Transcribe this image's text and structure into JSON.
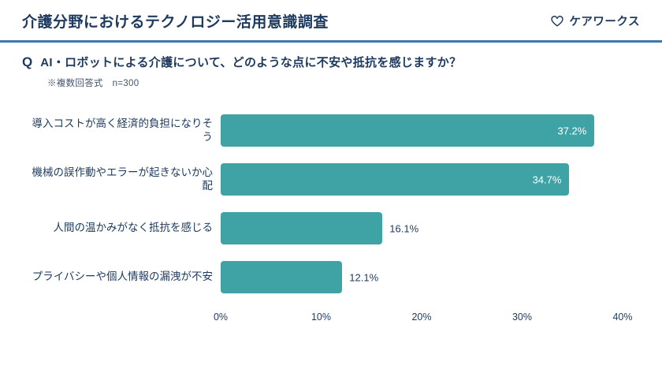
{
  "header": {
    "title": "介護分野におけるテクノロジー活用意識調査",
    "brand": "ケアワークス"
  },
  "question": {
    "prefix": "Q",
    "text": "AI・ロボットによる介護について、どのような点に不安や抵抗を感じますか？",
    "note": "※複数回答式　n=300"
  },
  "chart_data": {
    "type": "bar",
    "orientation": "horizontal",
    "title": "AI・ロボットによる介護について、どのような点に不安や抵抗を感じますか？",
    "categories": [
      "導入コストが高く経済的負担になりそう",
      "機械の誤作動やエラーが起きないか心配",
      "人間の温かみがなく抵抗を感じる",
      "プライバシーや個人情報の漏洩が不安"
    ],
    "values": [
      37.2,
      34.7,
      16.1,
      12.1
    ],
    "value_labels": [
      "37.2%",
      "34.7%",
      "16.1%",
      "12.1%"
    ],
    "x_ticks": [
      "0%",
      "10%",
      "20%",
      "30%",
      "40%"
    ],
    "xlim": [
      0,
      40
    ],
    "xlabel": "",
    "ylabel": "",
    "grid": false,
    "legend": false,
    "bar_color": "#3fa3a5"
  },
  "colors": {
    "navy": "#1d3a5e",
    "divider_blue": "#4273b4",
    "bar_teal": "#3fa3a5",
    "value_inside": "#ffffff"
  }
}
